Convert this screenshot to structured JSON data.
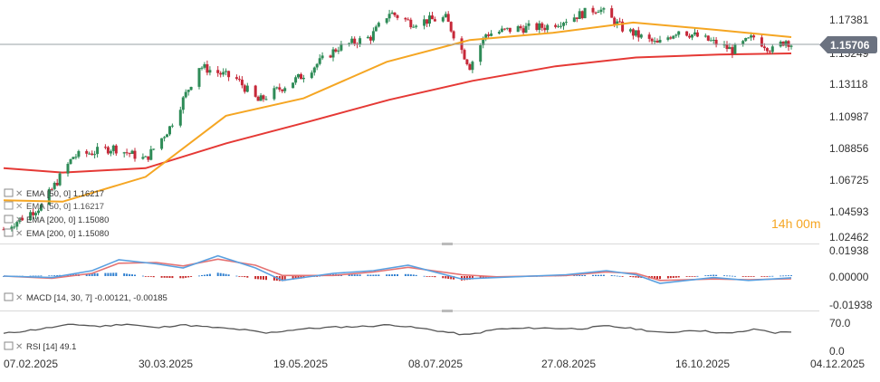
{
  "colors": {
    "bull": "#2e8b57",
    "bear": "#c62839",
    "ema50": "#f5a623",
    "ema200": "#e53935",
    "macd_line": "#5aa0e0",
    "macd_signal": "#e57373",
    "hist_pos": "#2f7fd0",
    "hist_neg": "#c62828",
    "rsi": "#555555",
    "price_tag": "#6b7280",
    "price_line": "#9aa0a6",
    "grid": "#e6e6e6"
  },
  "timer": {
    "hours": "14",
    "h_unit": "h",
    "minutes": "00",
    "m_unit": "m"
  },
  "last_price_tag": "1.15706",
  "legend": {
    "price_panel": [
      {
        "icon": "settings-icon",
        "close": "close-icon",
        "text": "EMA [50, 0] 1.16217"
      },
      {
        "icon": "settings-icon",
        "close": "close-icon",
        "text": "EMA [50, 0] 1.16217"
      },
      {
        "icon": "settings-icon",
        "close": "close-icon",
        "text": "EMA [200, 0] 1.15080"
      },
      {
        "icon": "settings-icon",
        "close": "close-icon",
        "text": "EMA [200, 0] 1.15080"
      }
    ],
    "macd": "MACD [14, 30, 7] -0.00121, -0.00185",
    "rsi": "RSI [14] 49.1"
  },
  "chart_data": [
    {
      "type": "candlestick",
      "panel": "price",
      "x_labels": [
        "07.02.2025",
        "30.03.2025",
        "19.05.2025",
        "08.07.2025",
        "27.08.2025",
        "16.10.2025",
        "04.12.2025"
      ],
      "x_range": [
        "2025-02-07",
        "2025-12-04"
      ],
      "y_ticks": [
        "1.17381",
        "1.15249",
        "1.13118",
        "1.10987",
        "1.08856",
        "1.06725",
        "1.04593",
        "1.02462"
      ],
      "ylim": [
        1.02462,
        1.17381
      ],
      "last_price": 1.15706,
      "series": [
        {
          "name": "Price",
          "approx_close": [
            [
              "2025-02-07",
              1.03
            ],
            [
              "2025-02-21",
              1.046
            ],
            [
              "2025-03-05",
              1.08
            ],
            [
              "2025-03-20",
              1.086
            ],
            [
              "2025-04-01",
              1.078
            ],
            [
              "2025-04-10",
              1.1
            ],
            [
              "2025-04-21",
              1.142
            ],
            [
              "2025-05-05",
              1.133
            ],
            [
              "2025-05-13",
              1.118
            ],
            [
              "2025-05-29",
              1.135
            ],
            [
              "2025-06-12",
              1.155
            ],
            [
              "2025-06-24",
              1.162
            ],
            [
              "2025-07-01",
              1.179
            ],
            [
              "2025-07-09",
              1.172
            ],
            [
              "2025-07-22",
              1.175
            ],
            [
              "2025-07-31",
              1.142
            ],
            [
              "2025-08-06",
              1.164
            ],
            [
              "2025-08-18",
              1.168
            ],
            [
              "2025-08-28",
              1.169
            ],
            [
              "2025-09-17",
              1.182
            ],
            [
              "2025-09-26",
              1.168
            ],
            [
              "2025-10-09",
              1.157
            ],
            [
              "2025-10-17",
              1.167
            ],
            [
              "2025-10-29",
              1.159
            ],
            [
              "2025-11-06",
              1.153
            ],
            [
              "2025-11-14",
              1.162
            ],
            [
              "2025-11-21",
              1.153
            ],
            [
              "2025-11-26",
              1.16
            ],
            [
              "2025-11-28",
              1.157
            ]
          ]
        },
        {
          "name": "EMA 50",
          "points": [
            [
              "2025-02-07",
              1.05
            ],
            [
              "2025-03-01",
              1.049
            ],
            [
              "2025-04-01",
              1.066
            ],
            [
              "2025-05-01",
              1.108
            ],
            [
              "2025-05-30",
              1.12
            ],
            [
              "2025-06-30",
              1.145
            ],
            [
              "2025-07-31",
              1.16
            ],
            [
              "2025-08-31",
              1.165
            ],
            [
              "2025-09-30",
              1.172
            ],
            [
              "2025-10-31",
              1.167
            ],
            [
              "2025-11-28",
              1.162
            ]
          ]
        },
        {
          "name": "EMA 200",
          "points": [
            [
              "2025-02-07",
              1.072
            ],
            [
              "2025-03-01",
              1.069
            ],
            [
              "2025-04-01",
              1.072
            ],
            [
              "2025-05-01",
              1.089
            ],
            [
              "2025-06-01",
              1.104
            ],
            [
              "2025-07-01",
              1.119
            ],
            [
              "2025-08-01",
              1.132
            ],
            [
              "2025-09-01",
              1.142
            ],
            [
              "2025-10-01",
              1.148
            ],
            [
              "2025-11-01",
              1.15
            ],
            [
              "2025-11-28",
              1.1508
            ]
          ]
        }
      ]
    },
    {
      "type": "macd",
      "panel": "macd",
      "y_ticks": [
        "0.01938",
        "0.00000",
        "-0.01938"
      ],
      "ylim": [
        -0.01938,
        0.01938
      ],
      "series": [
        {
          "name": "MACD",
          "points": [
            [
              "2025-02-07",
              0.0
            ],
            [
              "2025-02-25",
              -0.001
            ],
            [
              "2025-03-12",
              0.004
            ],
            [
              "2025-03-22",
              0.012
            ],
            [
              "2025-04-05",
              0.009
            ],
            [
              "2025-04-15",
              0.006
            ],
            [
              "2025-04-28",
              0.015
            ],
            [
              "2025-05-12",
              0.006
            ],
            [
              "2025-05-22",
              -0.003
            ],
            [
              "2025-06-10",
              0.002
            ],
            [
              "2025-06-25",
              0.004
            ],
            [
              "2025-07-08",
              0.008
            ],
            [
              "2025-07-28",
              -0.002
            ],
            [
              "2025-08-10",
              -0.001
            ],
            [
              "2025-09-05",
              0.001
            ],
            [
              "2025-09-20",
              0.004
            ],
            [
              "2025-10-01",
              0.001
            ],
            [
              "2025-10-10",
              -0.005
            ],
            [
              "2025-10-30",
              -0.001
            ],
            [
              "2025-11-12",
              -0.003
            ],
            [
              "2025-11-28",
              -0.0012
            ]
          ]
        },
        {
          "name": "Signal",
          "points": [
            [
              "2025-02-07",
              0.0
            ],
            [
              "2025-02-25",
              -0.0015
            ],
            [
              "2025-03-12",
              0.002
            ],
            [
              "2025-03-22",
              0.0095
            ],
            [
              "2025-04-05",
              0.01
            ],
            [
              "2025-04-15",
              0.0075
            ],
            [
              "2025-04-28",
              0.0125
            ],
            [
              "2025-05-12",
              0.008
            ],
            [
              "2025-05-22",
              0.0005
            ],
            [
              "2025-06-10",
              0.0005
            ],
            [
              "2025-06-25",
              0.003
            ],
            [
              "2025-07-08",
              0.0065
            ],
            [
              "2025-07-28",
              0.001
            ],
            [
              "2025-08-10",
              -0.0005
            ],
            [
              "2025-09-05",
              0.0005
            ],
            [
              "2025-09-20",
              0.003
            ],
            [
              "2025-10-01",
              0.002
            ],
            [
              "2025-10-10",
              -0.003
            ],
            [
              "2025-10-30",
              -0.002
            ],
            [
              "2025-11-12",
              -0.0025
            ],
            [
              "2025-11-28",
              -0.0018
            ]
          ]
        }
      ]
    },
    {
      "type": "line",
      "panel": "rsi",
      "y_ticks": [
        "70.0",
        "0.0"
      ],
      "ylim": [
        0,
        100
      ],
      "series": [
        {
          "name": "RSI",
          "points": [
            [
              "2025-02-07",
              44
            ],
            [
              "2025-02-20",
              55
            ],
            [
              "2025-03-05",
              67
            ],
            [
              "2025-03-15",
              62
            ],
            [
              "2025-03-25",
              68
            ],
            [
              "2025-04-05",
              58
            ],
            [
              "2025-04-14",
              66
            ],
            [
              "2025-04-25",
              60
            ],
            [
              "2025-05-08",
              53
            ],
            [
              "2025-05-16",
              45
            ],
            [
              "2025-05-28",
              55
            ],
            [
              "2025-06-10",
              60
            ],
            [
              "2025-06-22",
              62
            ],
            [
              "2025-07-02",
              66
            ],
            [
              "2025-07-15",
              55
            ],
            [
              "2025-07-30",
              40
            ],
            [
              "2025-08-10",
              55
            ],
            [
              "2025-08-25",
              58
            ],
            [
              "2025-09-10",
              56
            ],
            [
              "2025-09-20",
              63
            ],
            [
              "2025-10-02",
              55
            ],
            [
              "2025-10-12",
              45
            ],
            [
              "2025-10-22",
              53
            ],
            [
              "2025-11-05",
              44
            ],
            [
              "2025-11-15",
              55
            ],
            [
              "2025-11-22",
              46
            ],
            [
              "2025-11-28",
              49
            ]
          ]
        }
      ]
    }
  ]
}
